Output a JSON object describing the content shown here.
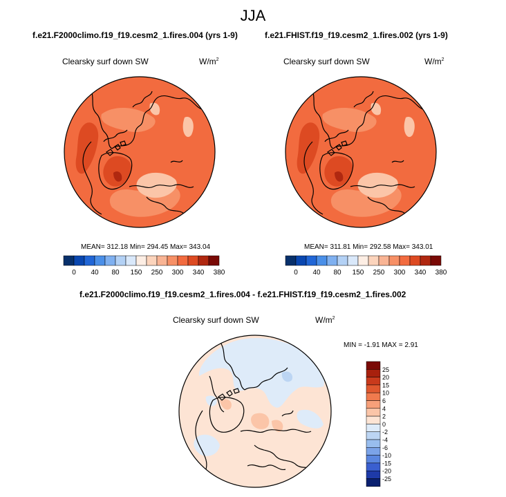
{
  "page": {
    "title": "JJA"
  },
  "chart_data": [
    {
      "type": "heatmap",
      "title": "f.e21.F2000climo.f19_f19.cesm2_1.fires.004 (yrs 1-9)",
      "variable": "Clearsky surf down SW",
      "units": "W/m",
      "units_exp": "2",
      "projection": "polar-stereographic",
      "stats": {
        "mean": "312.18",
        "min": "294.45",
        "max": "343.04"
      },
      "stats_text": "MEAN= 312.18  Min= 294.45  Max= 343.04",
      "colorbar": {
        "orientation": "horizontal",
        "levels": [
          0,
          40,
          80,
          150,
          250,
          300,
          340,
          380
        ],
        "labels": [
          "0",
          "40",
          "80",
          "150",
          "250",
          "300",
          "340",
          "380"
        ],
        "colors": [
          "#08306b",
          "#0a47b0",
          "#2166d6",
          "#4a8fe8",
          "#7fb0f0",
          "#b3d1f5",
          "#d9e8fa",
          "#fdeee4",
          "#fcd4bc",
          "#f9b494",
          "#f79066",
          "#f26b3f",
          "#dd4a22",
          "#b02810",
          "#7a0a06"
        ]
      }
    },
    {
      "type": "heatmap",
      "title": "f.e21.FHIST.f19_f19.cesm2_1.fires.002 (yrs 1-9)",
      "variable": "Clearsky surf down SW",
      "units": "W/m",
      "units_exp": "2",
      "projection": "polar-stereographic",
      "stats": {
        "mean": "311.81",
        "min": "292.58",
        "max": "343.01"
      },
      "stats_text": "MEAN= 311.81  Min= 292.58  Max= 343.01",
      "colorbar": {
        "orientation": "horizontal",
        "levels": [
          0,
          40,
          80,
          150,
          250,
          300,
          340,
          380
        ],
        "labels": [
          "0",
          "40",
          "80",
          "150",
          "250",
          "300",
          "340",
          "380"
        ],
        "colors": [
          "#08306b",
          "#0a47b0",
          "#2166d6",
          "#4a8fe8",
          "#7fb0f0",
          "#b3d1f5",
          "#d9e8fa",
          "#fdeee4",
          "#fcd4bc",
          "#f9b494",
          "#f79066",
          "#f26b3f",
          "#dd4a22",
          "#b02810",
          "#7a0a06"
        ]
      }
    },
    {
      "type": "heatmap",
      "title": "f.e21.F2000climo.f19_f19.cesm2_1.fires.004 - f.e21.FHIST.f19_f19.cesm2_1.fires.002",
      "variable": "Clearsky surf down SW",
      "units": "W/m",
      "units_exp": "2",
      "projection": "polar-stereographic",
      "stats": {
        "min": "-1.91",
        "max": "2.91"
      },
      "stats_text": "MIN =  -1.91  MAX =   2.91",
      "colorbar": {
        "orientation": "vertical",
        "levels": [
          25,
          20,
          15,
          10,
          6,
          4,
          2,
          0,
          -2,
          -4,
          -6,
          -10,
          -15,
          -20,
          -25
        ],
        "labels": [
          "25",
          "20",
          "15",
          "10",
          "6",
          "4",
          "2",
          "0",
          "-2",
          "-4",
          "-6",
          "-10",
          "-15",
          "-20",
          "-25"
        ],
        "colors": [
          "#7a0a06",
          "#a8200d",
          "#c93a1c",
          "#e0582f",
          "#f07a4e",
          "#f7a07a",
          "#fbc5a8",
          "#fde4d4",
          "#deebf9",
          "#bcd5f3",
          "#98bdee",
          "#7ba3e8",
          "#5a86df",
          "#3a5fd0",
          "#1e3aa8",
          "#0a2070"
        ]
      }
    }
  ]
}
